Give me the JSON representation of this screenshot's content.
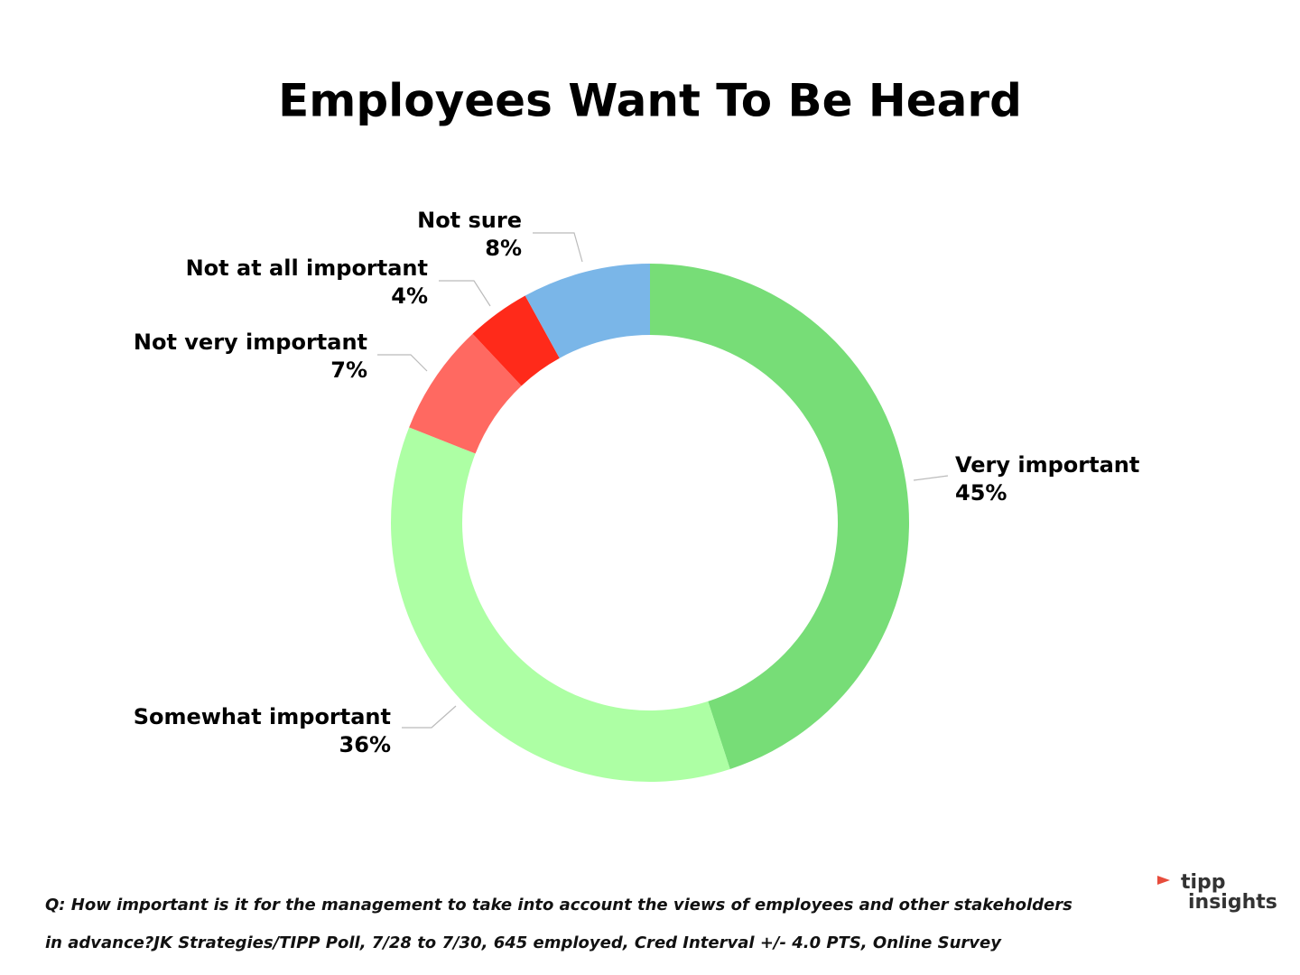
{
  "chart_data": {
    "type": "donut",
    "title": "Employees Want To Be Heard",
    "categories": [
      "Very important",
      "Somewhat important",
      "Not very important",
      "Not at all important",
      "Not sure"
    ],
    "values": [
      45,
      36,
      7,
      4,
      8
    ],
    "value_labels": [
      "45%",
      "36%",
      "7%",
      "4%",
      "8%"
    ],
    "colors": [
      "#77dd77",
      "#adffa4",
      "#ff6961",
      "#ff2a1a",
      "#7ab6e8"
    ],
    "footnote": "Q:  How important is it for the management to take into account the views of employees and other stakeholders in advance?JK Strategies/TIPP Poll, 7/28 to 7/30, 645 employed, Cred Interval +/- 4.0 PTS, Online Survey",
    "logo": [
      "tipp",
      "insights"
    ]
  }
}
